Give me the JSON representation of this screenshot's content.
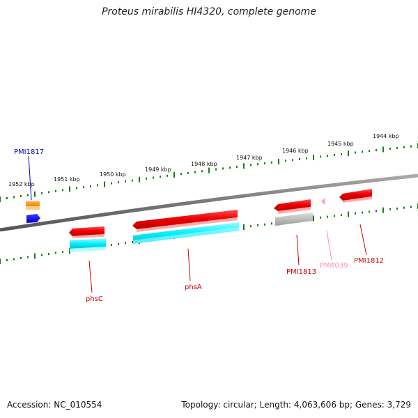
{
  "title": "Proteus mirabilis HI4320, complete genome",
  "accession": "Accession: NC_010554",
  "summary": "Topology: circular; Length: 4,063,606 bp; Genes: 3,729",
  "ticks": [
    "1952 kbp",
    "1951 kbp",
    "1950 kbp",
    "1949 kbp",
    "1948 kbp",
    "1947 kbp",
    "1946 kbp",
    "1945 kbp",
    "1944 kbp"
  ],
  "features": [
    {
      "name": "PMI1817",
      "color": "#0000cc"
    },
    {
      "name": "phsC",
      "color": "#cc0000"
    },
    {
      "name": "phsA",
      "color": "#cc0000"
    },
    {
      "name": "PMI1813",
      "color": "#cc0000"
    },
    {
      "name": "PMIt039",
      "color": "#ff88bb"
    },
    {
      "name": "PMI1812",
      "color": "#cc0000"
    }
  ]
}
